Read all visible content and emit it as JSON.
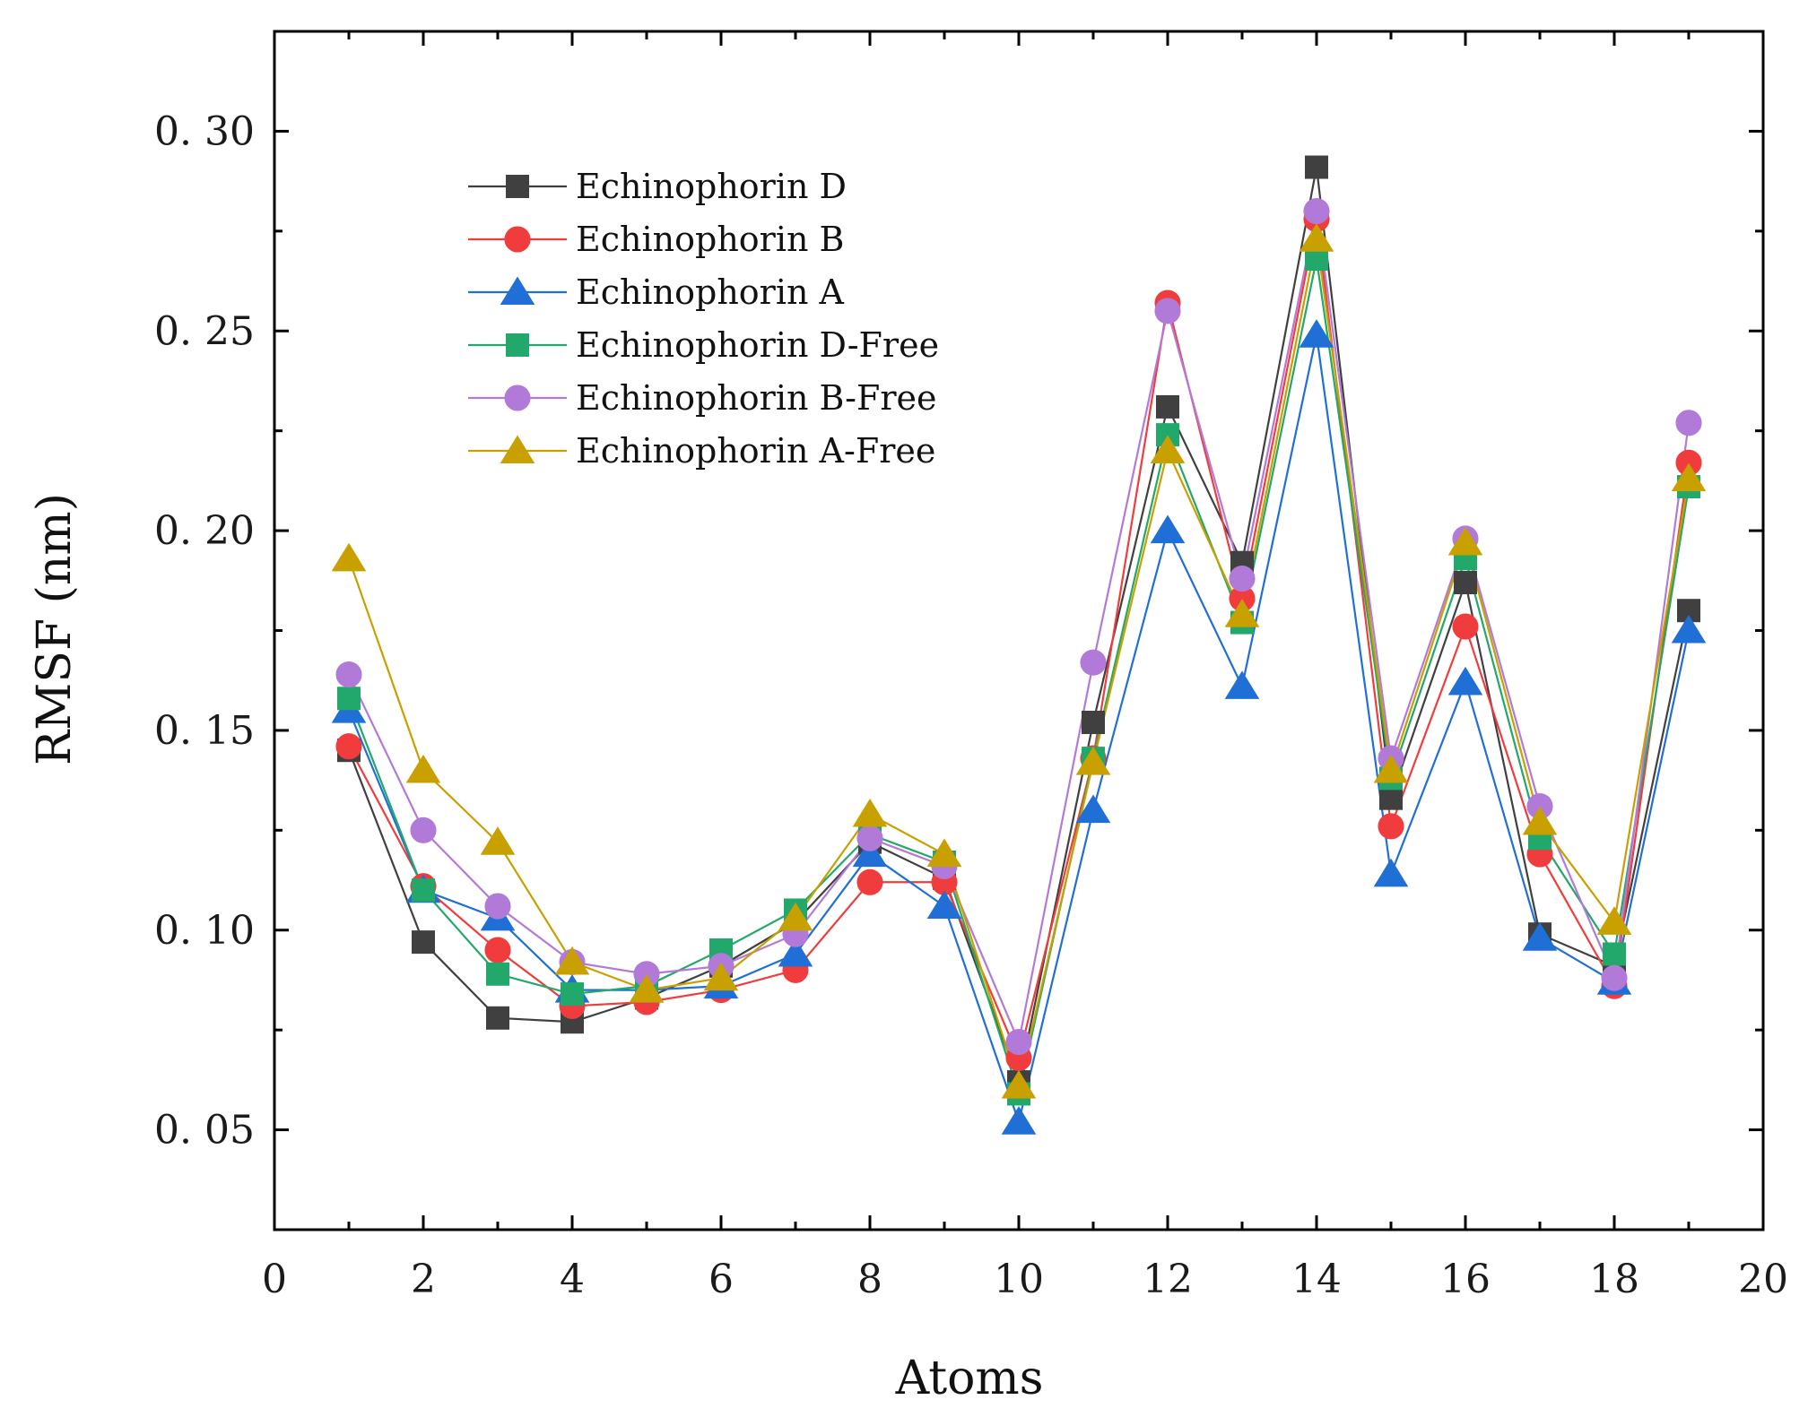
{
  "chart_data": {
    "type": "line",
    "xlabel": "Atoms",
    "ylabel": "RMSF (nm)",
    "xlim": [
      0,
      20
    ],
    "ylim": [
      0.025,
      0.325
    ],
    "x_ticks": [
      0,
      2,
      4,
      6,
      8,
      10,
      12,
      14,
      16,
      18,
      20
    ],
    "x_tick_labels": [
      "0",
      "2",
      "4",
      "6",
      "8",
      "10",
      "12",
      "14",
      "16",
      "18",
      "20"
    ],
    "y_ticks": [
      0.05,
      0.1,
      0.15,
      0.2,
      0.25,
      0.3
    ],
    "y_tick_labels": [
      "0. 05",
      "0. 10",
      "0. 15",
      "0. 20",
      "0. 25",
      "0. 30"
    ],
    "legend_position": "top-left",
    "x": [
      1,
      2,
      3,
      4,
      5,
      6,
      7,
      8,
      9,
      10,
      11,
      12,
      13,
      14,
      15,
      16,
      17,
      18,
      19
    ],
    "series": [
      {
        "name": "Echinophorin D",
        "color": "#404040",
        "marker": "square",
        "values": [
          0.145,
          0.097,
          0.078,
          0.077,
          0.083,
          0.091,
          0.102,
          0.122,
          0.113,
          0.062,
          0.152,
          0.231,
          0.192,
          0.291,
          0.133,
          0.187,
          0.099,
          0.091,
          0.18
        ]
      },
      {
        "name": "Echinophorin B",
        "color": "#f03c3c",
        "marker": "circle",
        "values": [
          0.146,
          0.111,
          0.095,
          0.081,
          0.082,
          0.085,
          0.09,
          0.112,
          0.112,
          0.068,
          0.143,
          0.257,
          0.183,
          0.278,
          0.126,
          0.176,
          0.119,
          0.086,
          0.217
        ]
      },
      {
        "name": "Echinophorin A",
        "color": "#1f6fd6",
        "marker": "triangle",
        "values": [
          0.155,
          0.11,
          0.103,
          0.085,
          0.085,
          0.086,
          0.094,
          0.119,
          0.106,
          0.052,
          0.13,
          0.2,
          0.161,
          0.249,
          0.114,
          0.162,
          0.098,
          0.087,
          0.175
        ]
      },
      {
        "name": "Echinophorin D-Free",
        "color": "#22a86a",
        "marker": "square",
        "values": [
          0.158,
          0.11,
          0.089,
          0.084,
          0.086,
          0.095,
          0.105,
          0.124,
          0.117,
          0.059,
          0.143,
          0.224,
          0.177,
          0.268,
          0.138,
          0.193,
          0.123,
          0.094,
          0.211
        ]
      },
      {
        "name": "Echinophorin B-Free",
        "color": "#b27ad8",
        "marker": "circle",
        "values": [
          0.164,
          0.125,
          0.106,
          0.092,
          0.089,
          0.091,
          0.099,
          0.123,
          0.116,
          0.072,
          0.167,
          0.255,
          0.188,
          0.28,
          0.143,
          0.198,
          0.131,
          0.088,
          0.227
        ]
      },
      {
        "name": "Echinophorin A-Free",
        "color": "#c8a000",
        "marker": "triangle",
        "values": [
          0.193,
          0.14,
          0.122,
          0.092,
          0.085,
          0.088,
          0.103,
          0.129,
          0.119,
          0.061,
          0.142,
          0.22,
          0.179,
          0.273,
          0.14,
          0.197,
          0.127,
          0.102,
          0.213
        ]
      }
    ]
  }
}
